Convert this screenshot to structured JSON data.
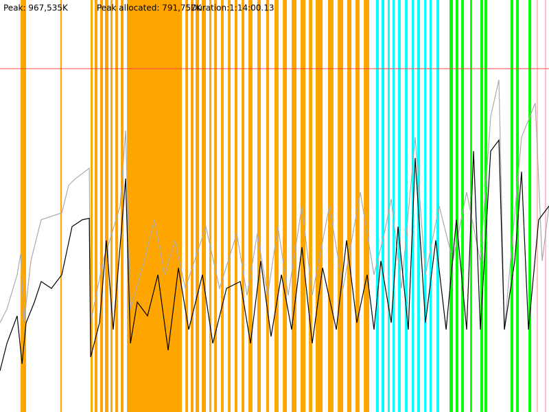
{
  "chart_data": {
    "type": "memory-timeline",
    "header": {
      "peak": "Peak: 967,535K",
      "peak_allocated": "Peak allocated: 791,757K",
      "duration": "Duration:1:14:00.13"
    },
    "xlim": [
      0,
      4440
    ],
    "ylim": [
      0,
      1200000
    ],
    "limit": {
      "value": 1000000,
      "color": "#ff4040"
    },
    "events": [
      {
        "color": "#ffa500",
        "spans": [
          [
            167,
            211
          ],
          [
            488,
            500
          ],
          [
            733,
            749
          ],
          [
            766,
            788
          ],
          [
            810,
            833
          ],
          [
            849,
            877
          ],
          [
            894,
            910
          ],
          [
            932,
            955
          ],
          [
            977,
            999
          ],
          [
            1027,
            1471
          ],
          [
            1499,
            1521
          ],
          [
            1543,
            1565
          ],
          [
            1582,
            1610
          ],
          [
            1632,
            1665
          ],
          [
            1693,
            1709
          ],
          [
            1732,
            1754
          ],
          [
            1787,
            1809
          ],
          [
            1843,
            1865
          ],
          [
            1898,
            1920
          ],
          [
            1954,
            1976
          ],
          [
            2009,
            2042
          ],
          [
            2081,
            2109
          ],
          [
            2153,
            2176
          ],
          [
            2220,
            2253
          ],
          [
            2287,
            2320
          ],
          [
            2359,
            2398
          ],
          [
            2431,
            2470
          ],
          [
            2498,
            2525
          ],
          [
            2553,
            2609
          ],
          [
            2653,
            2697
          ],
          [
            2731,
            2775
          ],
          [
            2808,
            2842
          ],
          [
            2875,
            2908
          ],
          [
            2942,
            2986
          ]
        ]
      },
      {
        "color": "#00ffff",
        "spans": [
          [
            3041,
            3064
          ],
          [
            3086,
            3108
          ],
          [
            3136,
            3152
          ],
          [
            3175,
            3191
          ],
          [
            3219,
            3241
          ],
          [
            3275,
            3297
          ],
          [
            3330,
            3347
          ],
          [
            3374,
            3397
          ],
          [
            3430,
            3447
          ],
          [
            3474,
            3491
          ],
          [
            3530,
            3552
          ]
        ]
      },
      {
        "color": "#00ff00",
        "spans": [
          [
            3635,
            3663
          ],
          [
            3685,
            3707
          ],
          [
            3730,
            3752
          ],
          [
            3802,
            3818
          ],
          [
            3885,
            3907
          ],
          [
            3918,
            3941
          ],
          [
            4129,
            4151
          ],
          [
            4174,
            4196
          ],
          [
            4274,
            4296
          ]
        ]
      },
      {
        "color": "#ffc0cb",
        "spans": [
          [
            4340,
            4351
          ],
          [
            4407,
            4418
          ]
        ]
      }
    ],
    "series": [
      {
        "color": "#aaaaaa",
        "x": [
          0,
          56,
          139,
          167,
          194,
          250,
          333,
          500,
          555,
          611,
          722,
          733,
          833,
          888,
          971,
          1016,
          1055,
          1166,
          1249,
          1332,
          1415,
          1499,
          1665,
          1776,
          1915,
          1998,
          2081,
          2165,
          2248,
          2331,
          2442,
          2525,
          2664,
          2775,
          2914,
          3025,
          3108,
          3164,
          3247,
          3358,
          3441,
          3552,
          3663,
          3774,
          3885,
          3968,
          4035,
          4079,
          4218,
          4329,
          4385,
          4440
        ],
        "values": [
          260000,
          300000,
          400000,
          460000,
          260000,
          440000,
          560000,
          580000,
          660000,
          680000,
          710000,
          260000,
          440000,
          500000,
          600000,
          820000,
          300000,
          440000,
          560000,
          400000,
          500000,
          360000,
          540000,
          360000,
          520000,
          340000,
          520000,
          340000,
          540000,
          340000,
          600000,
          340000,
          600000,
          360000,
          640000,
          400000,
          520000,
          620000,
          360000,
          800000,
          400000,
          600000,
          440000,
          640000,
          440000,
          860000,
          967535,
          240000,
          800000,
          900000,
          440000,
          600000
        ]
      },
      {
        "color": "#000000",
        "x": [
          0,
          56,
          139,
          178,
          211,
          278,
          333,
          416,
          500,
          583,
          666,
          722,
          733,
          805,
          860,
          916,
          1016,
          1055,
          1110,
          1193,
          1277,
          1360,
          1443,
          1526,
          1637,
          1721,
          1832,
          1943,
          2026,
          2109,
          2192,
          2276,
          2359,
          2442,
          2525,
          2609,
          2720,
          2803,
          2886,
          2969,
          3025,
          3080,
          3164,
          3219,
          3302,
          3358,
          3441,
          3524,
          3608,
          3691,
          3774,
          3830,
          3885,
          3968,
          4035,
          4079,
          4163,
          4218,
          4274,
          4357,
          4440
        ],
        "values": [
          120000,
          200000,
          280000,
          140000,
          260000,
          320000,
          380000,
          360000,
          400000,
          540000,
          560000,
          564000,
          160000,
          260000,
          500000,
          240000,
          680000,
          200000,
          320000,
          280000,
          400000,
          180000,
          420000,
          240000,
          400000,
          200000,
          360000,
          380000,
          200000,
          440000,
          220000,
          400000,
          240000,
          480000,
          200000,
          420000,
          240000,
          500000,
          260000,
          400000,
          240000,
          440000,
          260000,
          540000,
          240000,
          740000,
          260000,
          500000,
          240000,
          560000,
          240000,
          760000,
          240000,
          760000,
          791757,
          240000,
          440000,
          700000,
          240000,
          560000,
          600000
        ]
      }
    ]
  }
}
